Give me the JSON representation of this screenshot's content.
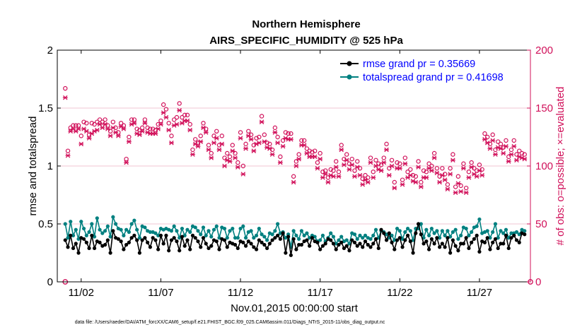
{
  "chart_data": {
    "type": "line",
    "title": [
      "Northern Hemisphere",
      "AIRS_SPECIFIC_HUMIDITY @ 525 hPa"
    ],
    "xlabel": "Nov.01,2015 00:00:00 start",
    "ylabel": "rmse and totalspread",
    "y2label": "# of obs: o=possible; ×=evaluated",
    "footnote": "data file: /Users/raeder/DAI/ATM_forcXX/CAM6_setup/f.e21.FHIST_BGC.f09_025.CAM6assim.011/Diags_NTrS_2015-11/obs_diag_output.nc",
    "xlim": [
      0.5,
      30.2
    ],
    "ylim": [
      0,
      2
    ],
    "y2lim": [
      0,
      200
    ],
    "xticks": [
      2,
      7,
      12,
      17,
      22,
      27
    ],
    "xticklabels": [
      "11/02",
      "11/07",
      "11/12",
      "11/17",
      "11/22",
      "11/27"
    ],
    "yticks": [
      0,
      0.5,
      1,
      1.5,
      2
    ],
    "yticklabels": [
      "0",
      "0.5",
      "1",
      "1.5",
      "2"
    ],
    "y2ticks": [
      0,
      50,
      100,
      150,
      200
    ],
    "y2ticklabels": [
      "0",
      "50",
      "100",
      "150",
      "200"
    ],
    "legend_position": "top-right",
    "colors": {
      "rmse": "#000000",
      "totalspread": "#008080",
      "obs": "#d1105a",
      "axes2": "#d1105a"
    },
    "series": [
      {
        "name": "rmse",
        "legend": "rmse grand pr = 0.35669",
        "axis": "left",
        "values": [
          0.36,
          0.3,
          0.4,
          0.29,
          0.33,
          0.25,
          0.38,
          0.37,
          0.34,
          0.29,
          0.4,
          0.29,
          0.35,
          0.34,
          0.31,
          0.32,
          0.36,
          0.25,
          0.44,
          0.38,
          0.37,
          0.35,
          0.28,
          0.32,
          0.34,
          0.38,
          0.4,
          0.36,
          0.25,
          0.36,
          0.38,
          0.34,
          0.3,
          0.38,
          0.36,
          0.28,
          0.4,
          0.33,
          0.4,
          0.27,
          0.36,
          0.38,
          0.35,
          0.27,
          0.39,
          0.31,
          0.36,
          0.28,
          0.4,
          0.38,
          0.35,
          0.3,
          0.38,
          0.33,
          0.29,
          0.31,
          0.36,
          0.35,
          0.28,
          0.37,
          0.36,
          0.3,
          0.34,
          0.33,
          0.32,
          0.29,
          0.35,
          0.34,
          0.31,
          0.35,
          0.33,
          0.3,
          0.28,
          0.36,
          0.34,
          0.32,
          0.29,
          0.33,
          0.36,
          0.38,
          0.4,
          0.37,
          0.42,
          0.25,
          0.39,
          0.23,
          0.37,
          0.28,
          0.32,
          0.32,
          0.35,
          0.36,
          0.31,
          0.38,
          0.35,
          0.34,
          0.28,
          0.31,
          0.33,
          0.37,
          0.36,
          0.33,
          0.28,
          0.32,
          0.34,
          0.29,
          0.31,
          0.27,
          0.36,
          0.34,
          0.31,
          0.33,
          0.3,
          0.35,
          0.32,
          0.3,
          0.33,
          0.37,
          0.29,
          0.45,
          0.42,
          0.36,
          0.42,
          0.34,
          0.28,
          0.36,
          0.38,
          0.3,
          0.36,
          0.4,
          0.35,
          0.25,
          0.42,
          0.5,
          0.41,
          0.33,
          0.35,
          0.28,
          0.37,
          0.33,
          0.38,
          0.3,
          0.33,
          0.3,
          0.38,
          0.25,
          0.36,
          0.31,
          0.27,
          0.33,
          0.33,
          0.38,
          0.29,
          0.34,
          0.37,
          0.4,
          0.26,
          0.35,
          0.34,
          0.38,
          0.28,
          0.34,
          0.37,
          0.29,
          0.33,
          0.33,
          0.4,
          0.29,
          0.38,
          0.4,
          0.36,
          0.34,
          0.42,
          0.41
        ]
      },
      {
        "name": "totalspread",
        "legend": "totalspread grand pr = 0.41698",
        "axis": "left",
        "values": [
          0.5,
          0.38,
          0.52,
          0.4,
          0.45,
          0.37,
          0.52,
          0.46,
          0.4,
          0.43,
          0.5,
          0.39,
          0.55,
          0.45,
          0.42,
          0.44,
          0.48,
          0.39,
          0.56,
          0.5,
          0.46,
          0.45,
          0.4,
          0.45,
          0.43,
          0.5,
          0.53,
          0.45,
          0.38,
          0.48,
          0.47,
          0.44,
          0.43,
          0.43,
          0.42,
          0.4,
          0.46,
          0.45,
          0.46,
          0.45,
          0.44,
          0.48,
          0.44,
          0.38,
          0.46,
          0.4,
          0.45,
          0.43,
          0.48,
          0.47,
          0.44,
          0.41,
          0.47,
          0.4,
          0.44,
          0.39,
          0.45,
          0.48,
          0.38,
          0.47,
          0.46,
          0.38,
          0.44,
          0.46,
          0.38,
          0.38,
          0.46,
          0.48,
          0.38,
          0.43,
          0.44,
          0.38,
          0.4,
          0.46,
          0.41,
          0.39,
          0.36,
          0.42,
          0.41,
          0.44,
          0.5,
          0.42,
          0.43,
          0.38,
          0.41,
          0.3,
          0.44,
          0.4,
          0.37,
          0.44,
          0.4,
          0.42,
          0.38,
          0.4,
          0.39,
          0.35,
          0.36,
          0.4,
          0.35,
          0.38,
          0.42,
          0.39,
          0.33,
          0.36,
          0.39,
          0.35,
          0.36,
          0.33,
          0.42,
          0.41,
          0.37,
          0.4,
          0.38,
          0.4,
          0.38,
          0.37,
          0.4,
          0.45,
          0.38,
          0.44,
          0.43,
          0.41,
          0.38,
          0.4,
          0.36,
          0.46,
          0.44,
          0.37,
          0.43,
          0.46,
          0.44,
          0.36,
          0.46,
          0.46,
          0.5,
          0.38,
          0.45,
          0.4,
          0.46,
          0.42,
          0.44,
          0.38,
          0.44,
          0.4,
          0.44,
          0.39,
          0.43,
          0.45,
          0.37,
          0.4,
          0.47,
          0.46,
          0.4,
          0.43,
          0.47,
          0.48,
          0.54,
          0.42,
          0.43,
          0.44,
          0.38,
          0.43,
          0.5,
          0.38,
          0.44,
          0.42,
          0.45,
          0.38,
          0.42,
          0.42,
          0.43,
          0.41,
          0.45,
          0.44
        ]
      },
      {
        "name": "obs possible",
        "axis": "right",
        "marker": "o",
        "values": [
          167,
          113,
          133,
          135,
          135,
          135,
          126,
          138,
          137,
          127,
          137,
          136,
          138,
          140,
          138,
          140,
          135,
          130,
          138,
          133,
          129,
          137,
          135,
          106,
          125,
          140,
          140,
          132,
          131,
          133,
          140,
          133,
          132,
          132,
          131,
          136,
          139,
          153,
          149,
          137,
          126,
          140,
          142,
          154,
          142,
          144,
          144,
          136,
          114,
          123,
          120,
          126,
          137,
          132,
          118,
          111,
          126,
          130,
          118,
          126,
          107,
          111,
          108,
          118,
          111,
          103,
          129,
          100,
          119,
          130,
          127,
          118,
          124,
          125,
          143,
          127,
          120,
          119,
          114,
          133,
          125,
          108,
          122,
          129,
          128,
          128,
          91,
          104,
          110,
          122,
          122,
          115,
          113,
          112,
          113,
          103,
          111,
          95,
          96,
          90,
          97,
          96,
          104,
          95,
          118,
          106,
          110,
          102,
          106,
          96,
          104,
          98,
          89,
          92,
          90,
          107,
          95,
          105,
          102,
          101,
          107,
          119,
          98,
          105,
          86,
          103,
          102,
          88,
          107,
          95,
          97,
          92,
          91,
          104,
          86,
          96,
          95,
          102,
          100,
          111,
          98,
          91,
          98,
          93,
          84,
          98,
          110,
          82,
          91,
          83,
          102,
          81,
          95,
          103,
          98,
          96,
          101,
          97,
          128,
          125,
          119,
          127,
          114,
          121,
          119,
          116,
          122,
          108,
          114,
          122,
          110,
          113,
          111,
          110
        ]
      },
      {
        "name": "obs evaluated",
        "axis": "right",
        "marker": "x",
        "values": [
          159,
          109,
          130,
          132,
          130,
          132,
          119,
          132,
          130,
          124,
          128,
          130,
          131,
          136,
          133,
          136,
          132,
          126,
          133,
          129,
          126,
          134,
          132,
          103,
          121,
          136,
          137,
          128,
          127,
          130,
          137,
          129,
          128,
          128,
          128,
          132,
          136,
          146,
          142,
          131,
          120,
          135,
          136,
          148,
          137,
          139,
          139,
          131,
          110,
          119,
          117,
          121,
          133,
          129,
          114,
          107,
          120,
          124,
          114,
          119,
          100,
          105,
          104,
          113,
          107,
          99,
          124,
          93,
          115,
          126,
          123,
          113,
          119,
          120,
          138,
          121,
          116,
          115,
          110,
          129,
          120,
          103,
          117,
          124,
          123,
          123,
          86,
          100,
          106,
          118,
          118,
          111,
          108,
          108,
          108,
          98,
          106,
          90,
          93,
          86,
          92,
          91,
          99,
          91,
          114,
          101,
          105,
          97,
          101,
          91,
          99,
          92,
          84,
          88,
          86,
          103,
          90,
          100,
          97,
          96,
          103,
          114,
          92,
          100,
          81,
          98,
          98,
          84,
          102,
          90,
          92,
          87,
          86,
          99,
          82,
          90,
          90,
          98,
          96,
          107,
          94,
          86,
          92,
          88,
          80,
          93,
          105,
          77,
          85,
          78,
          98,
          77,
          90,
          99,
          93,
          91,
          96,
          92,
          123,
          120,
          115,
          122,
          110,
          116,
          115,
          111,
          117,
          104,
          110,
          117,
          105,
          108,
          107,
          106
        ]
      }
    ]
  }
}
